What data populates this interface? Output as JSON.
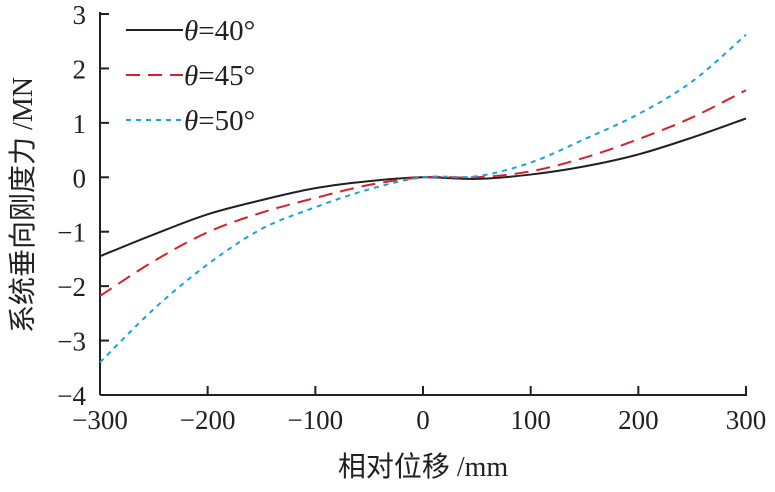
{
  "chart_data": {
    "type": "line",
    "title": "",
    "xlabel": "相对位移 /mm",
    "ylabel": "系统垂向刚度力 /MN",
    "xlim": [
      -300,
      300
    ],
    "ylim": [
      -4,
      3
    ],
    "xticks": [
      -300,
      -200,
      -100,
      0,
      100,
      200,
      300
    ],
    "yticks": [
      -4,
      -3,
      -2,
      -1,
      0,
      1,
      2,
      3
    ],
    "xtick_labels": [
      "−300",
      "−200",
      "−100",
      "0",
      "100",
      "200",
      "300"
    ],
    "ytick_labels": [
      "−4",
      "−3",
      "−2",
      "−1",
      "0",
      "1",
      "2",
      "3"
    ],
    "grid": false,
    "legend_position": "top-left",
    "x": [
      -300,
      -250,
      -200,
      -150,
      -100,
      -50,
      0,
      50,
      100,
      150,
      200,
      250,
      300
    ],
    "series": [
      {
        "name": "θ=40°",
        "legend_symbol": "θ",
        "legend_text": "=40°",
        "color": "#231f20",
        "style": "solid",
        "values": [
          -1.45,
          -1.05,
          -0.68,
          -0.42,
          -0.2,
          -0.07,
          0,
          -0.03,
          0.05,
          0.2,
          0.42,
          0.73,
          1.08
        ]
      },
      {
        "name": "θ=45°",
        "legend_symbol": "θ",
        "legend_text": "=45°",
        "color": "#d2232a",
        "style": "dashed",
        "values": [
          -2.18,
          -1.54,
          -1.01,
          -0.65,
          -0.38,
          -0.14,
          0,
          0,
          0.11,
          0.36,
          0.7,
          1.1,
          1.6
        ]
      },
      {
        "name": "θ=50°",
        "legend_symbol": "θ",
        "legend_text": "=50°",
        "color": "#1ba1dc",
        "style": "dotted",
        "values": [
          -3.4,
          -2.42,
          -1.6,
          -0.95,
          -0.55,
          -0.22,
          0,
          0.02,
          0.27,
          0.7,
          1.16,
          1.76,
          2.62
        ]
      }
    ]
  }
}
